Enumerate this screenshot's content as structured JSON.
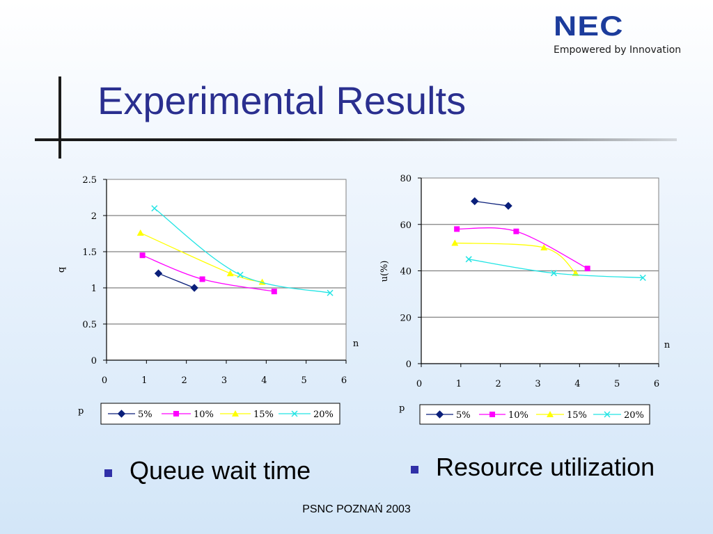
{
  "logo": {
    "brand": "NEC",
    "tagline": "Empowered by Innovation"
  },
  "title": "Experimental Results",
  "bullets": [
    "Queue wait time",
    "Resource utilization"
  ],
  "footer": "PSNC POZNAŃ 2003",
  "colors": {
    "s5": "#0a1f7a",
    "s10": "#ff00ff",
    "s15": "#ffff00",
    "s20": "#22e4e4",
    "title": "#2a2f8f",
    "bullet": "#3030a8"
  },
  "chart_data": [
    {
      "type": "line",
      "title": "",
      "xlabel": "n",
      "ylabel": "q",
      "legend_title": "p",
      "xlim": [
        0,
        6
      ],
      "ylim": [
        0,
        2.5
      ],
      "xticks": [
        "0",
        "1",
        "2",
        "3",
        "4",
        "5",
        "6"
      ],
      "yticks": [
        "0",
        "0.5",
        "1",
        "1.5",
        "2",
        "2.5"
      ],
      "grid": true,
      "legend": "bottom",
      "series": [
        {
          "name": "5%",
          "marker": "diamond",
          "x": [
            1.3,
            2.2
          ],
          "y": [
            1.2,
            1.0
          ]
        },
        {
          "name": "10%",
          "marker": "square",
          "x": [
            0.9,
            2.4,
            4.2
          ],
          "y": [
            1.45,
            1.12,
            0.95
          ]
        },
        {
          "name": "15%",
          "marker": "triangle",
          "x": [
            0.85,
            3.1,
            3.9
          ],
          "y": [
            1.76,
            1.2,
            1.08
          ]
        },
        {
          "name": "20%",
          "marker": "x",
          "x": [
            1.2,
            3.35,
            5.6
          ],
          "y": [
            2.1,
            1.18,
            0.93
          ]
        }
      ]
    },
    {
      "type": "line",
      "title": "",
      "xlabel": "n",
      "ylabel": "u(%)",
      "legend_title": "p",
      "xlim": [
        0,
        6
      ],
      "ylim": [
        0,
        80
      ],
      "xticks": [
        "0",
        "1",
        "2",
        "3",
        "4",
        "5",
        "6"
      ],
      "yticks": [
        "0",
        "20",
        "40",
        "60",
        "80"
      ],
      "grid": true,
      "legend": "bottom",
      "series": [
        {
          "name": "5%",
          "marker": "diamond",
          "x": [
            1.35,
            2.2
          ],
          "y": [
            70,
            68
          ]
        },
        {
          "name": "10%",
          "marker": "square",
          "x": [
            0.9,
            2.4,
            4.2
          ],
          "y": [
            58,
            57,
            41
          ]
        },
        {
          "name": "15%",
          "marker": "triangle",
          "x": [
            0.85,
            3.1,
            3.9
          ],
          "y": [
            52,
            50,
            39
          ]
        },
        {
          "name": "20%",
          "marker": "x",
          "x": [
            1.2,
            3.35,
            5.6
          ],
          "y": [
            45,
            39,
            37
          ]
        }
      ]
    }
  ]
}
